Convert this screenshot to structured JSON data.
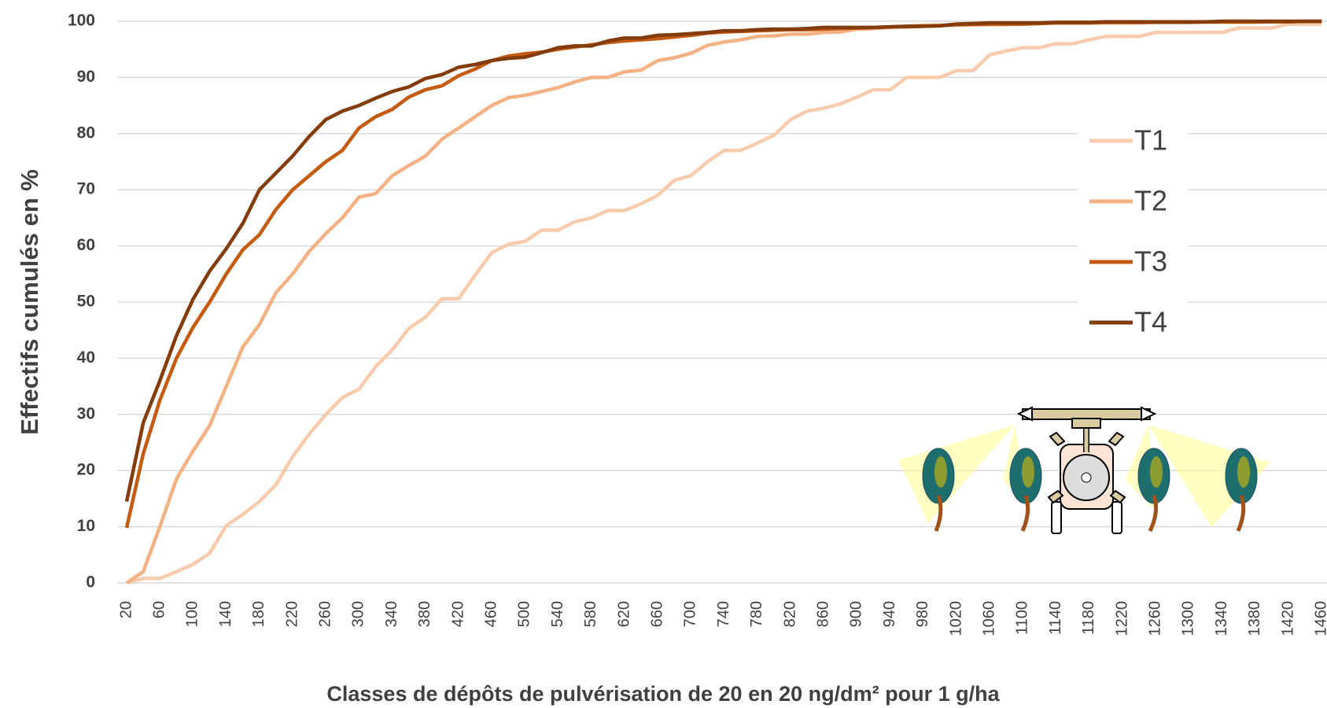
{
  "chart_data": {
    "type": "line",
    "ylabel": "Effectifs cumulés en %",
    "xlabel": "Classes de dépôts de pulvérisation de 20 en 20 ng/dm² pour 1 g/ha",
    "categories": [
      "20",
      null,
      "60",
      null,
      "100",
      null,
      "140",
      null,
      "180",
      null,
      "220",
      null,
      "260",
      null,
      "300",
      null,
      "340",
      null,
      "380",
      null,
      "420",
      null,
      "460",
      null,
      "500",
      null,
      "540",
      null,
      "580",
      null,
      "620",
      null,
      "660",
      null,
      "700",
      null,
      "740",
      null,
      "780",
      null,
      "820",
      null,
      "860",
      null,
      "900",
      null,
      "940",
      null,
      "980",
      null,
      "1020",
      null,
      "1060",
      null,
      "1100",
      null,
      "1140",
      null,
      "1180",
      null,
      "1220",
      null,
      "1260",
      null,
      "1300",
      null,
      "1340",
      null,
      "1380",
      null,
      "1420",
      null,
      "1460"
    ],
    "series": [
      {
        "name": "T1",
        "color": "#f8cbad",
        "values": [
          0,
          0.8,
          0.8,
          2,
          3.3,
          5.3,
          10.2,
          12.2,
          14.5,
          17.5,
          22.5,
          26.5,
          30,
          33,
          34.5,
          38.5,
          41.5,
          45.3,
          47.3,
          50.6,
          50.6,
          54.8,
          58.8,
          60.3,
          60.8,
          62.8,
          62.8,
          64.3,
          65,
          66.3,
          66.3,
          67.5,
          69,
          71.7,
          72.5,
          75,
          77,
          77,
          78.3,
          79.7,
          82.5,
          84,
          84.5,
          85.3,
          86.5,
          87.8,
          87.8,
          90,
          90,
          90,
          91.2,
          91.2,
          94,
          94.7,
          95.3,
          95.3,
          96,
          96,
          96.7,
          97.3,
          97.3,
          97.3,
          98,
          98,
          98,
          98,
          98,
          98.8,
          98.8,
          98.8,
          99.5,
          99.5,
          99.5
        ]
      },
      {
        "name": "T2",
        "color": "#f4b183",
        "values": [
          0,
          2,
          10,
          18.5,
          23.5,
          28,
          35,
          42,
          46,
          51.7,
          55,
          59,
          62.2,
          65,
          68.7,
          69.3,
          72.5,
          74.3,
          76,
          79,
          81,
          83,
          85,
          86.4,
          86.8,
          87.5,
          88.2,
          89.2,
          90,
          90,
          91,
          91.3,
          93,
          93.5,
          94.3,
          95.7,
          96.3,
          96.7,
          97.3,
          97.4,
          97.7,
          97.7,
          98,
          98.1,
          98.6,
          98.7,
          98.9,
          99.1,
          99.3,
          99.3,
          99.3,
          99.4,
          99.4,
          99.4,
          99.5,
          99.6,
          99.7,
          99.7,
          99.7,
          99.7,
          99.7,
          99.7,
          99.8,
          99.8,
          99.8,
          99.8,
          99.8,
          99.8,
          99.8,
          99.9,
          99.9,
          99.9,
          99.9
        ]
      },
      {
        "name": "T3",
        "color": "#c55a11",
        "values": [
          9.8,
          23,
          32.5,
          40,
          45.5,
          50,
          55,
          59.3,
          62,
          66.5,
          70,
          72.5,
          75,
          77,
          81,
          83,
          84.3,
          86.5,
          87.8,
          88.5,
          90.3,
          91.5,
          93,
          93.8,
          94.2,
          94.5,
          95,
          95.4,
          95.8,
          96.2,
          96.5,
          96.7,
          96.9,
          97.2,
          97.5,
          97.9,
          98.1,
          98.2,
          98.3,
          98.4,
          98.5,
          98.5,
          98.6,
          98.7,
          98.8,
          98.9,
          99,
          99,
          99.1,
          99.2,
          99.4,
          99.4,
          99.5,
          99.5,
          99.5,
          99.6,
          99.7,
          99.7,
          99.7,
          99.8,
          99.8,
          99.8,
          99.8,
          99.8,
          99.8,
          99.9,
          99.9,
          99.9,
          99.9,
          99.9,
          99.9,
          100,
          100
        ]
      },
      {
        "name": "T4",
        "color": "#843c0c",
        "values": [
          14.5,
          28.5,
          36,
          44,
          50.5,
          55.5,
          59.5,
          64,
          70,
          73,
          76,
          79.5,
          82.5,
          84,
          85,
          86.3,
          87.5,
          88.3,
          89.8,
          90.5,
          91.8,
          92.3,
          93,
          93.4,
          93.6,
          94.4,
          95.3,
          95.6,
          95.6,
          96.5,
          97,
          97,
          97.5,
          97.6,
          97.8,
          98,
          98.3,
          98.3,
          98.5,
          98.6,
          98.6,
          98.7,
          98.9,
          98.9,
          98.9,
          98.9,
          99,
          99.1,
          99.1,
          99.2,
          99.5,
          99.6,
          99.7,
          99.7,
          99.7,
          99.7,
          99.8,
          99.8,
          99.8,
          99.9,
          99.9,
          99.9,
          99.9,
          99.9,
          99.9,
          99.9,
          100,
          100,
          100,
          100,
          100,
          100,
          100
        ]
      }
    ],
    "ylim": [
      0,
      100
    ],
    "yticks": [
      0,
      10,
      20,
      30,
      40,
      50,
      60,
      70,
      80,
      90,
      100
    ],
    "grid": true
  }
}
